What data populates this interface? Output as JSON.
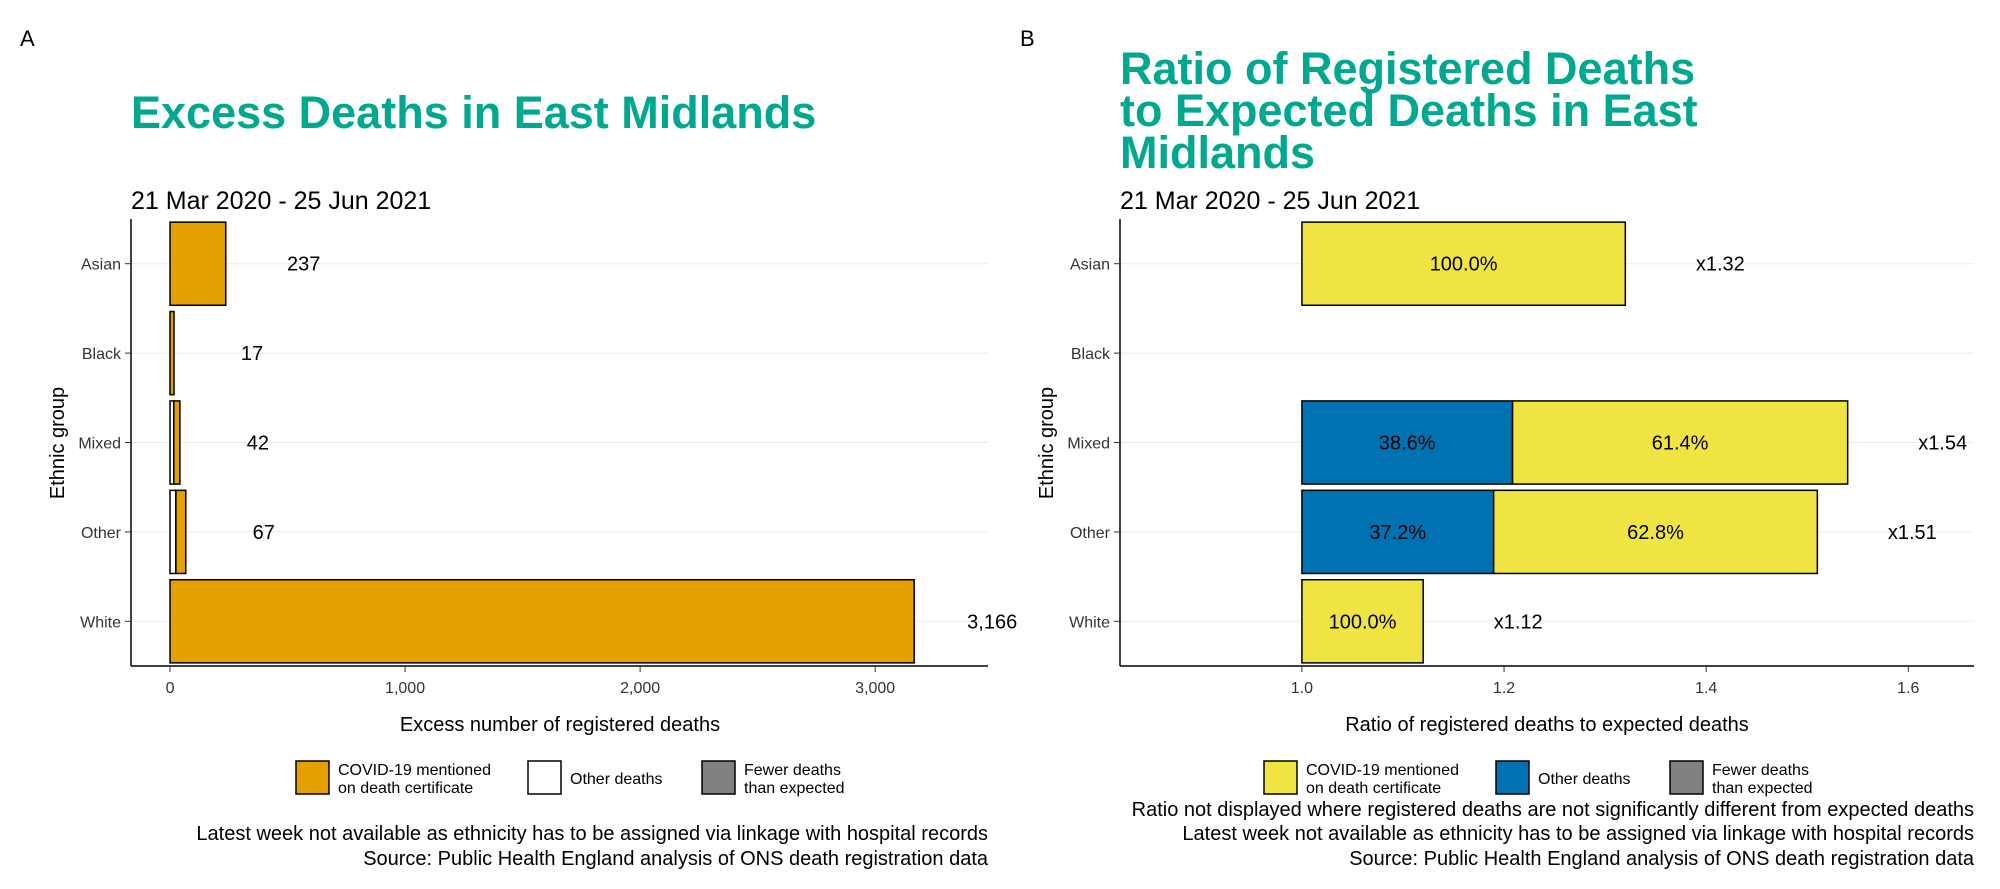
{
  "chart_data": [
    {
      "panel": "A",
      "type": "bar",
      "orientation": "horizontal",
      "stacked": true,
      "title": "Excess Deaths in East Midlands",
      "subtitle": "21 Mar 2020 - 25 Jun 2021",
      "xlabel": "Excess number of registered deaths",
      "ylabel": "Ethnic group",
      "xlim": [
        -166,
        3480
      ],
      "xticks": [
        0,
        1000,
        2000,
        3000
      ],
      "xtick_labels": [
        "0",
        "1,000",
        "2,000",
        "3,000"
      ],
      "grid": "horizontal major lines",
      "categories": [
        "Asian",
        "Black",
        "Mixed",
        "Other",
        "White"
      ],
      "series": [
        {
          "name": "Other deaths",
          "color": "#FFFFFF",
          "values": [
            0,
            0,
            16,
            25,
            0
          ]
        },
        {
          "name": "COVID-19 mentioned on death certificate",
          "color": "#E69F00",
          "values": [
            237,
            17,
            26,
            42,
            3166
          ]
        }
      ],
      "totals": [
        237,
        17,
        42,
        67,
        3166
      ],
      "data_labels": [
        "237",
        "17",
        "42",
        "67",
        "3,166"
      ],
      "legend": {
        "position": "bottom",
        "entries": [
          {
            "line1": "COVID-19 mentioned",
            "line2": "on death certificate",
            "color": "#E69F00"
          },
          {
            "line1": "Other deaths",
            "line2": "",
            "color": "#FFFFFF"
          },
          {
            "line1": "Fewer deaths",
            "line2": "than expected",
            "color": "#808080"
          }
        ]
      },
      "footnotes": [
        "Latest week not available as ethnicity has to be assigned via linkage with hospital records",
        "Source: Public Health England analysis of ONS death registration data"
      ]
    },
    {
      "panel": "B",
      "type": "bar",
      "orientation": "horizontal",
      "stacked": true,
      "title_lines": [
        "Ratio of Registered Deaths",
        "to Expected Deaths in East",
        "Midlands"
      ],
      "subtitle": "21 Mar 2020 - 25 Jun 2021",
      "xlabel": "Ratio of registered deaths to expected deaths",
      "ylabel": "Ethnic group",
      "xlim": [
        0.82,
        1.665
      ],
      "baseline": 1.0,
      "xticks": [
        1.0,
        1.2,
        1.4,
        1.6
      ],
      "xtick_labels": [
        "1.0",
        "1.2",
        "1.4",
        "1.6"
      ],
      "grid": "horizontal major lines",
      "categories": [
        "Asian",
        "Black",
        "Mixed",
        "Other",
        "White"
      ],
      "ratios": [
        1.32,
        null,
        1.54,
        1.51,
        1.12
      ],
      "ratio_labels": [
        "x1.32",
        "",
        "x1.54",
        "x1.51",
        "x1.12"
      ],
      "series": [
        {
          "name": "Other deaths",
          "color": "#0072B2",
          "share_pct": [
            0,
            null,
            38.6,
            37.2,
            0
          ],
          "labels": [
            "",
            "",
            "38.6%",
            "37.2%",
            ""
          ]
        },
        {
          "name": "COVID-19 mentioned on death certificate",
          "color": "#F0E442",
          "share_pct": [
            100.0,
            null,
            61.4,
            62.8,
            100.0
          ],
          "labels": [
            "100.0%",
            "",
            "61.4%",
            "62.8%",
            "100.0%"
          ]
        }
      ],
      "legend": {
        "position": "bottom",
        "entries": [
          {
            "line1": "COVID-19 mentioned",
            "line2": "on death certificate",
            "color": "#F0E442"
          },
          {
            "line1": "Other deaths",
            "line2": "",
            "color": "#0072B2"
          },
          {
            "line1": "Fewer deaths",
            "line2": "than expected",
            "color": "#808080"
          }
        ]
      },
      "footnotes": [
        "Ratio not displayed where registered deaths are not significantly different from expected deaths",
        "Latest week not available as ethnicity has to be assigned via linkage with hospital records",
        "Source: Public Health England analysis of ONS death registration data"
      ]
    }
  ]
}
